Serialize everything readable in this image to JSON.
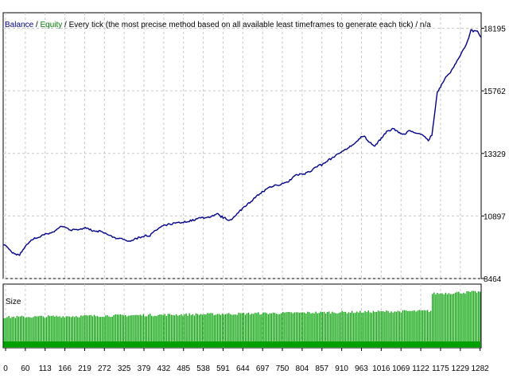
{
  "colors": {
    "balance": "#00008b",
    "equity": "#008000",
    "size_bars": "#00a000",
    "grid": "#c8c8c8",
    "frame": "#000000",
    "background": "#ffffff"
  },
  "header": {
    "balance_label": "Balance",
    "sep1": " / ",
    "equity_label": "Equity",
    "rest": " / Every tick (the most precise method based on all available least timeframes to generate each tick) / n/a"
  },
  "chart_data": [
    {
      "type": "line",
      "title": "Balance / Equity / Every tick (the most precise method based on all available least timeframes to generate each tick) / n/a",
      "x_range": [
        0,
        1310
      ],
      "ylim": [
        8464,
        18800
      ],
      "y_ticks": [
        "18195",
        "15762",
        "13329",
        "10897",
        "8464"
      ],
      "y_tick_values": [
        18195,
        15762,
        13329,
        10897,
        8464
      ],
      "grid": true,
      "series": [
        {
          "name": "Balance",
          "x": [
            0,
            10,
            25,
            45,
            60,
            80,
            113,
            140,
            166,
            190,
            219,
            245,
            272,
            300,
            325,
            350,
            379,
            405,
            432,
            460,
            485,
            510,
            538,
            565,
            591,
            620,
            644,
            670,
            697,
            725,
            750,
            780,
            804,
            830,
            857,
            885,
            910,
            935,
            963,
            990,
            1016,
            1045,
            1069,
            1095,
            1122,
            1150,
            1165,
            1175,
            1190,
            1210,
            1229,
            1250,
            1270,
            1282,
            1300,
            1310
          ],
          "values": [
            9800,
            9700,
            9450,
            9350,
            9700,
            10000,
            10150,
            10300,
            10500,
            10350,
            10450,
            10300,
            10250,
            10100,
            10000,
            9950,
            10100,
            10200,
            10450,
            10550,
            10600,
            10700,
            10800,
            10850,
            10900,
            10750,
            11000,
            11400,
            11700,
            11950,
            12050,
            12200,
            12500,
            12600,
            12800,
            13000,
            13200,
            13450,
            13750,
            14000,
            13600,
            14100,
            14300,
            14100,
            14200,
            14050,
            13800,
            14000,
            15700,
            16200,
            16600,
            17100,
            17600,
            18150,
            18100,
            17850
          ]
        }
      ]
    },
    {
      "type": "bar",
      "title": "Size",
      "x_range": [
        0,
        1310
      ],
      "x_ticks": [
        "0",
        "60",
        "113",
        "166",
        "219",
        "272",
        "325",
        "379",
        "432",
        "485",
        "538",
        "591",
        "644",
        "697",
        "750",
        "804",
        "857",
        "910",
        "963",
        "1016",
        "1069",
        "1122",
        "1175",
        "1229",
        "1282"
      ],
      "x_tick_values": [
        0,
        60,
        113,
        166,
        219,
        272,
        325,
        379,
        432,
        485,
        538,
        591,
        644,
        697,
        750,
        804,
        857,
        910,
        963,
        1016,
        1069,
        1122,
        1175,
        1229,
        1282
      ],
      "series": [
        {
          "name": "Size",
          "x": [
            0,
            1175,
            1176,
            1310
          ],
          "values": [
            0.48,
            0.58,
            0.85,
            0.88
          ]
        }
      ]
    }
  ]
}
